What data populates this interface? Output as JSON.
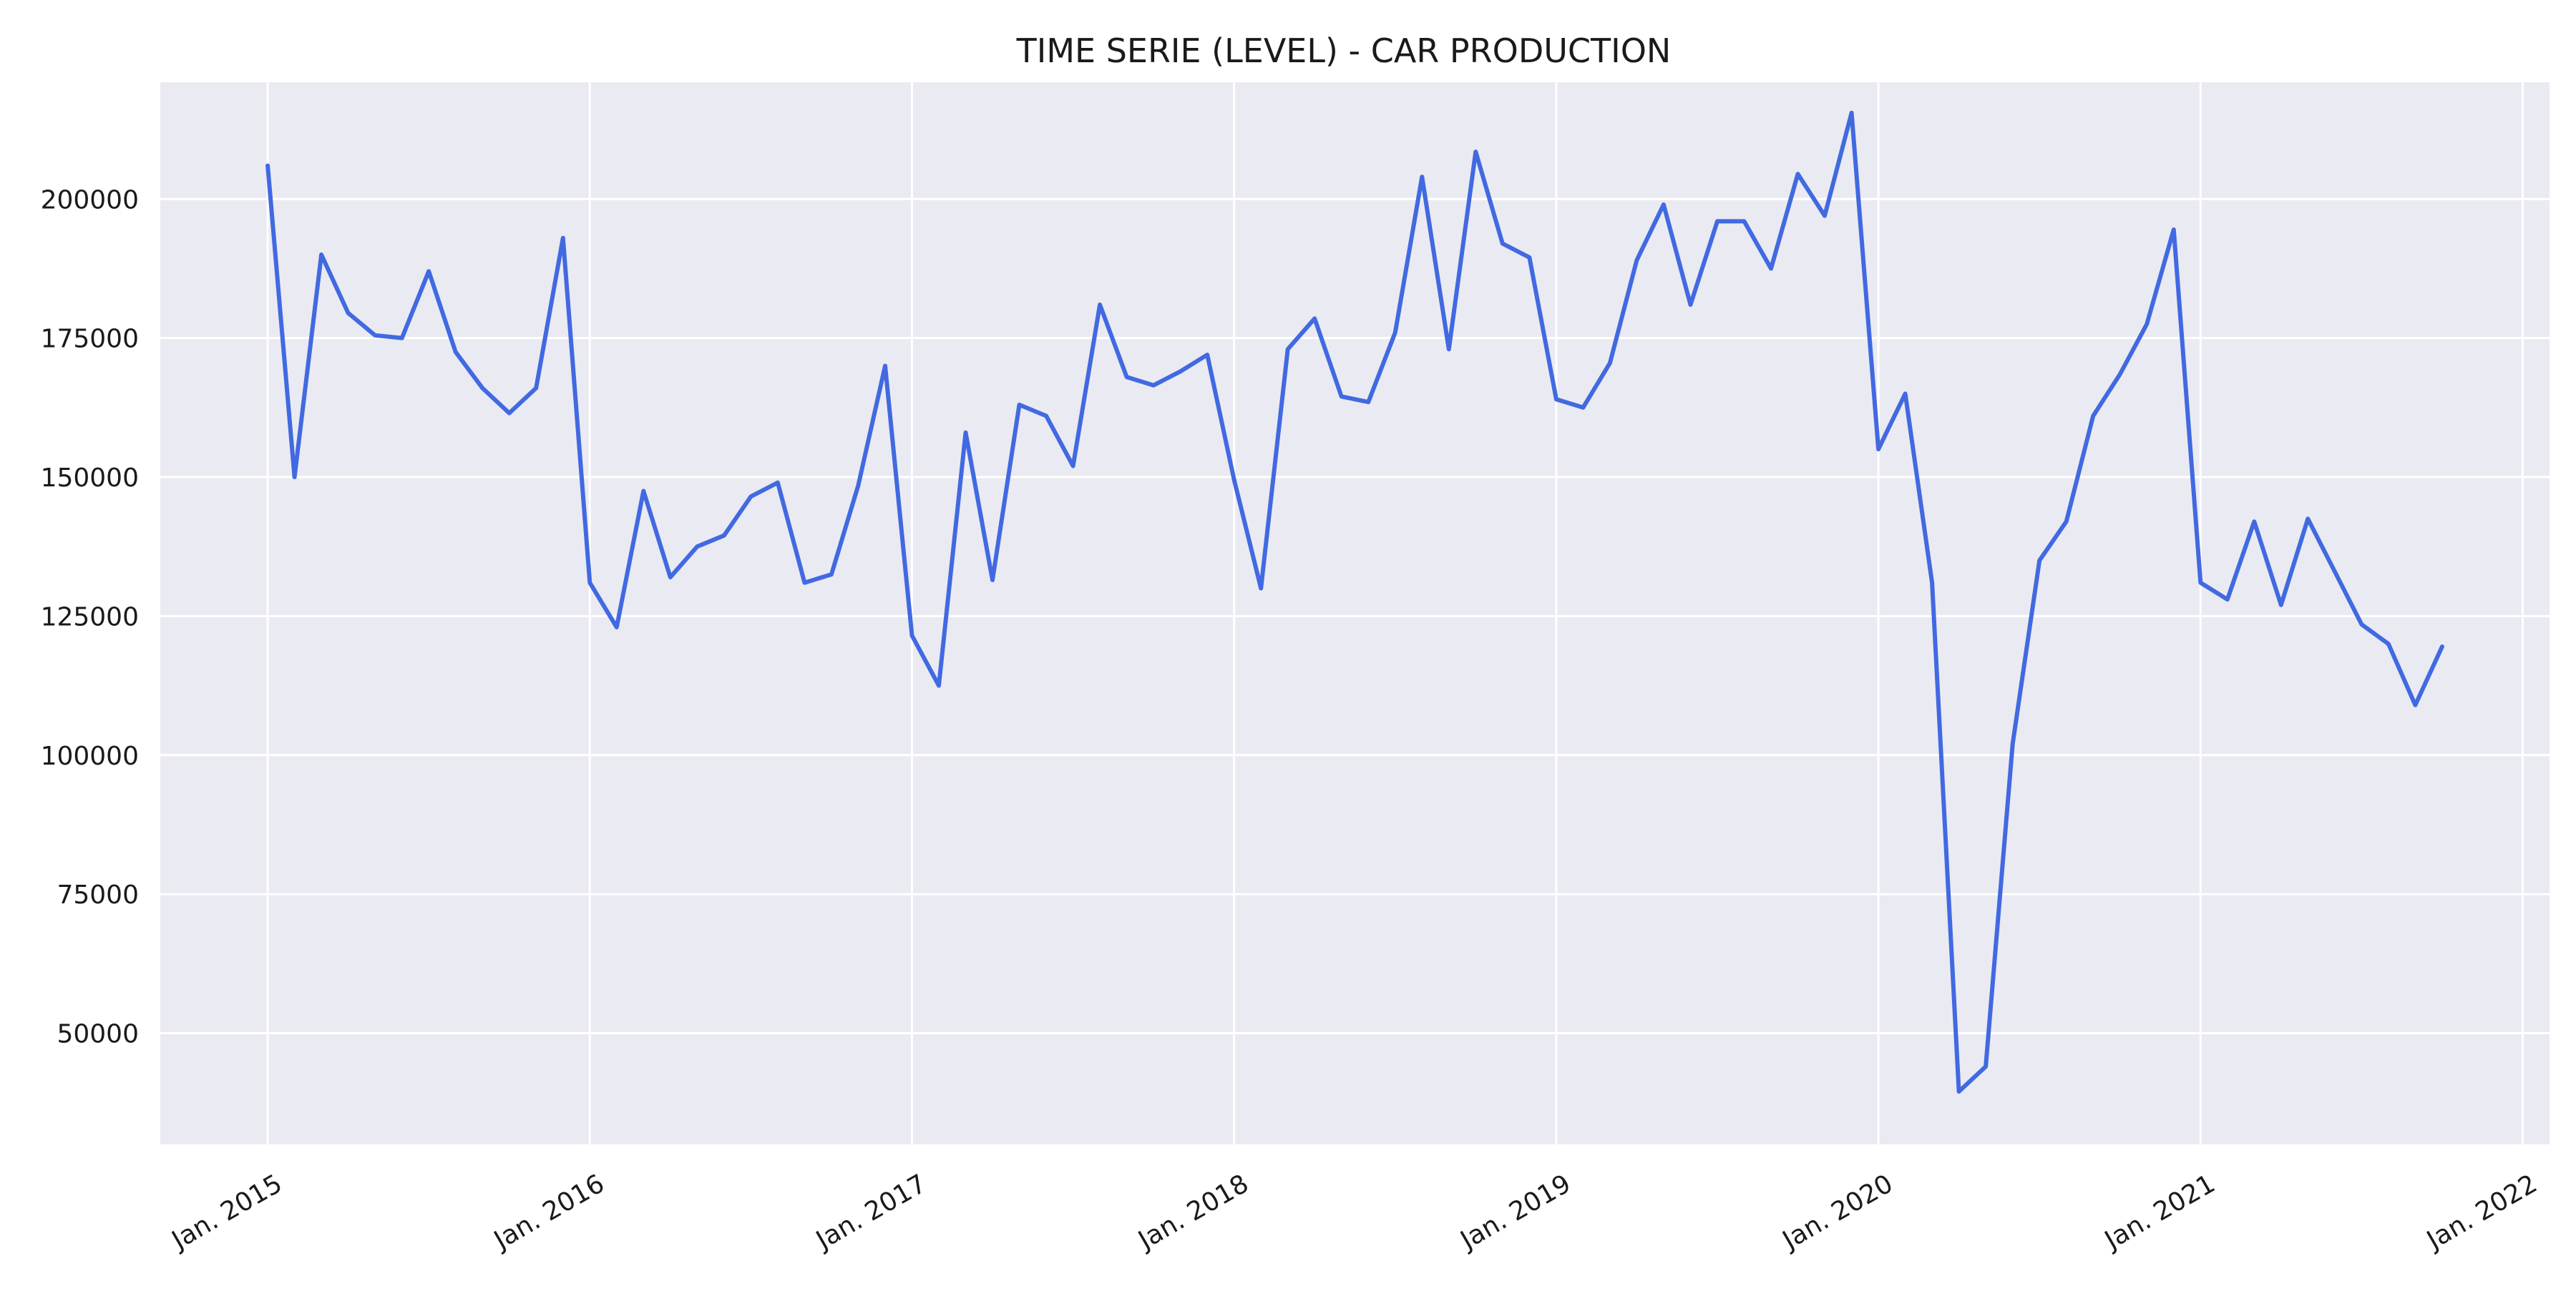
{
  "chart_data": {
    "type": "line",
    "title": "TIME SERIE (LEVEL) - CAR PRODUCTION",
    "xlabel": "",
    "ylabel": "",
    "x_start": "2015-01",
    "x_frequency": "monthly",
    "xlim": [
      "2014-09",
      "2022-02"
    ],
    "ylim": [
      30000,
      221000
    ],
    "yticks": [
      50000,
      75000,
      100000,
      125000,
      150000,
      175000,
      200000
    ],
    "ytick_labels": [
      "50000",
      "75000",
      "100000",
      "125000",
      "150000",
      "175000",
      "200000"
    ],
    "xticks": [
      "2015-01",
      "2016-01",
      "2017-01",
      "2018-01",
      "2019-01",
      "2020-01",
      "2021-01",
      "2022-01"
    ],
    "xtick_labels": [
      "Jan. 2015",
      "Jan. 2016",
      "Jan. 2017",
      "Jan. 2018",
      "Jan. 2019",
      "Jan. 2020",
      "Jan. 2021",
      "Jan. 2022"
    ],
    "grid": true,
    "colors": {
      "background": "#eaeaf2",
      "grid": "#ffffff",
      "line": "#4169e1"
    },
    "series": [
      {
        "values": [
          206000,
          150000,
          190000,
          179500,
          175500,
          175000,
          187000,
          172500,
          166000,
          161500,
          166000,
          193000,
          131000,
          123000,
          147500,
          132000,
          137500,
          139500,
          146500,
          149000,
          131000,
          132500,
          148500,
          170000,
          121500,
          112500,
          158000,
          131500,
          163000,
          161000,
          152000,
          181000,
          168000,
          166500,
          169000,
          172000,
          149500,
          130000,
          173000,
          178500,
          164500,
          163500,
          176000,
          204000,
          173000,
          208500,
          192000,
          189500,
          164000,
          162500,
          170500,
          189000,
          199000,
          181000,
          196000,
          196000,
          187500,
          204500,
          197000,
          215500,
          155000,
          165000,
          131000,
          39500,
          44000,
          102000,
          135000,
          142000,
          161000,
          168500,
          177500,
          194500,
          131000,
          128000,
          142000,
          127000,
          142500,
          133000,
          123500,
          120000,
          109000,
          119500
        ]
      }
    ]
  }
}
